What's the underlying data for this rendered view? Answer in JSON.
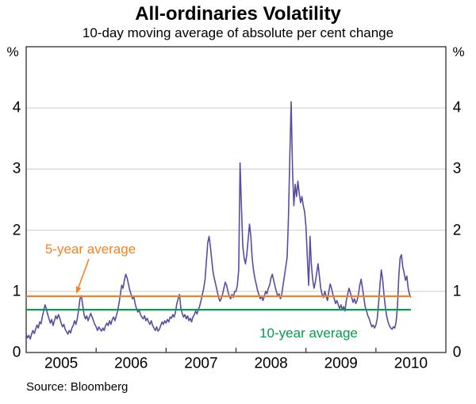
{
  "chart_data": {
    "type": "line",
    "title": "All-ordinaries Volatility",
    "subtitle": "10-day moving average of absolute per cent change",
    "unit_left": "%",
    "unit_right": "%",
    "ylim": [
      0,
      5
    ],
    "yticks": [
      0,
      1,
      2,
      3,
      4
    ],
    "grid_yticks": [
      1,
      2,
      3,
      4
    ],
    "grid": true,
    "xlim_years": [
      2005,
      2011
    ],
    "x_boundary_ticks": [
      2006,
      2007,
      2008,
      2009,
      2010
    ],
    "x_year_labels": [
      "2005",
      "2006",
      "2007",
      "2008",
      "2009",
      "2010"
    ],
    "series": [
      {
        "name": "All-ordinaries 10-day moving average volatility",
        "color": "#584ea0",
        "start_year": 2005,
        "samples_per_year": 52,
        "values": [
          0.3,
          0.24,
          0.28,
          0.22,
          0.3,
          0.36,
          0.31,
          0.38,
          0.45,
          0.4,
          0.5,
          0.47,
          0.58,
          0.68,
          0.78,
          0.72,
          0.62,
          0.55,
          0.48,
          0.54,
          0.44,
          0.52,
          0.6,
          0.55,
          0.62,
          0.56,
          0.48,
          0.42,
          0.46,
          0.38,
          0.34,
          0.3,
          0.36,
          0.32,
          0.4,
          0.44,
          0.52,
          0.46,
          0.55,
          0.7,
          0.88,
          0.93,
          0.78,
          0.62,
          0.55,
          0.6,
          0.52,
          0.58,
          0.64,
          0.58,
          0.52,
          0.46,
          0.42,
          0.36,
          0.42,
          0.38,
          0.35,
          0.4,
          0.36,
          0.44,
          0.48,
          0.44,
          0.52,
          0.46,
          0.54,
          0.58,
          0.52,
          0.6,
          0.68,
          0.8,
          0.95,
          1.1,
          1.05,
          1.18,
          1.28,
          1.22,
          1.12,
          1.02,
          0.95,
          0.88,
          0.92,
          0.8,
          0.72,
          0.66,
          0.7,
          0.62,
          0.58,
          0.55,
          0.6,
          0.52,
          0.56,
          0.5,
          0.46,
          0.52,
          0.44,
          0.4,
          0.36,
          0.42,
          0.35,
          0.38,
          0.44,
          0.5,
          0.46,
          0.52,
          0.48,
          0.54,
          0.5,
          0.58,
          0.56,
          0.62,
          0.58,
          0.66,
          0.8,
          0.88,
          0.95,
          0.72,
          0.64,
          0.58,
          0.62,
          0.55,
          0.6,
          0.52,
          0.56,
          0.5,
          0.58,
          0.62,
          0.68,
          0.63,
          0.7,
          0.76,
          0.85,
          0.95,
          1.05,
          1.2,
          1.5,
          1.8,
          1.9,
          1.72,
          1.5,
          1.3,
          1.2,
          1.1,
          1.0,
          0.9,
          0.84,
          0.88,
          0.95,
          1.05,
          1.15,
          1.1,
          1.0,
          0.92,
          0.88,
          0.95,
          0.9,
          1.0,
          1.0,
          1.1,
          1.35,
          3.1,
          2.4,
          1.75,
          1.55,
          1.45,
          1.6,
          1.85,
          2.1,
          1.9,
          1.55,
          1.35,
          1.22,
          1.12,
          1.02,
          0.95,
          0.88,
          0.92,
          0.85,
          0.92,
          1.0,
          0.96,
          1.05,
          1.1,
          1.22,
          1.28,
          1.18,
          1.08,
          1.0,
          0.92,
          0.96,
          0.88,
          0.95,
          1.1,
          1.25,
          1.4,
          1.55,
          2.2,
          3.2,
          4.1,
          3.0,
          2.4,
          2.75,
          2.55,
          2.8,
          2.6,
          2.45,
          2.55,
          2.4,
          2.3,
          2.05,
          1.55,
          1.1,
          1.9,
          1.45,
          1.2,
          1.05,
          1.15,
          1.3,
          1.45,
          1.25,
          1.05,
          0.95,
          0.9,
          1.0,
          0.92,
          0.85,
          1.0,
          1.12,
          1.05,
          0.95,
          0.88,
          0.8,
          0.85,
          0.78,
          0.72,
          0.78,
          0.7,
          0.75,
          0.68,
          0.85,
          0.95,
          1.05,
          0.98,
          0.9,
          0.82,
          0.88,
          0.8,
          0.85,
          0.95,
          1.1,
          1.2,
          1.05,
          0.9,
          0.75,
          0.68,
          0.6,
          0.55,
          0.48,
          0.42,
          0.45,
          0.4,
          0.45,
          0.55,
          0.8,
          1.1,
          1.35,
          1.2,
          0.95,
          0.75,
          0.6,
          0.5,
          0.44,
          0.4,
          0.38,
          0.42,
          0.4,
          0.5,
          0.75,
          1.25,
          1.55,
          1.6,
          1.4,
          1.3,
          1.18,
          1.25,
          1.05,
          0.95,
          0.9
        ]
      }
    ],
    "reference_lines": [
      {
        "label": "5-year average",
        "value": 0.92,
        "color": "#f58220"
      },
      {
        "label": "10-year average",
        "value": 0.7,
        "color": "#009e4b"
      }
    ],
    "source": "Source: Bloomberg",
    "legend_position": "inline-annotations"
  }
}
